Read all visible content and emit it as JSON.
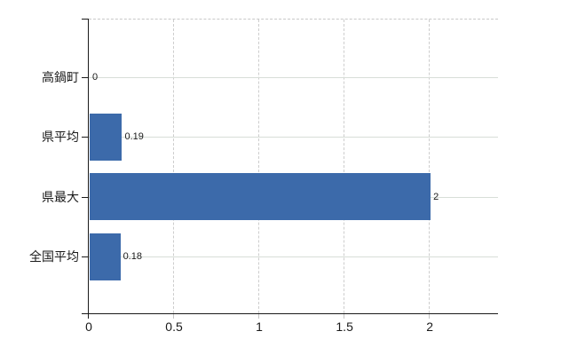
{
  "page": {
    "background": "#ffffff"
  },
  "chart_data": {
    "type": "bar",
    "orientation": "horizontal",
    "title": "",
    "categories": [
      "高鍋町",
      "県平均",
      "県最大",
      "全国平均"
    ],
    "values": [
      0,
      0.19,
      2,
      0.18
    ],
    "value_labels": [
      "0",
      "0.19",
      "2",
      "0.18"
    ],
    "x_ticks": [
      0,
      0.5,
      1,
      1.5,
      2
    ],
    "x_tick_labels": [
      "0",
      "0.5",
      "1",
      "1.5",
      "2"
    ],
    "xlim": [
      0,
      2.4
    ],
    "grid": true,
    "legend": false,
    "colors": {
      "bar": "#3c6aaa",
      "axis": "#1a1a1a",
      "gridline_horizontal": "#d8ded8",
      "gridline_vertical": "#cdcdcd",
      "plot_top_border": "#c9c9c9",
      "text": "#1a1a1a"
    }
  }
}
